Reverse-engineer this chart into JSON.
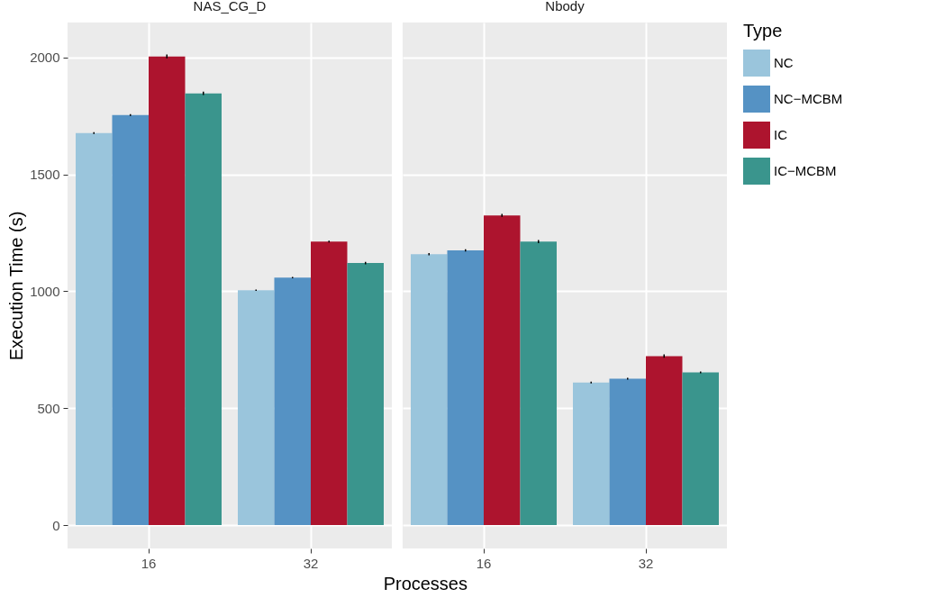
{
  "chart_data": [
    {
      "type": "bar",
      "title": "NAS_CG_D",
      "xlabel": "Processes",
      "ylabel": "Execution Time (s)",
      "categories": [
        "16",
        "32"
      ],
      "ylim": [
        -100,
        2150
      ],
      "yticks": [
        0,
        500,
        1000,
        1500,
        2000
      ],
      "grid": true,
      "legend": false,
      "series": [
        {
          "color": "#9ac5dc",
          "values": [
            1677,
            1005
          ],
          "errors": [
            4,
            3
          ]
        },
        {
          "color": "#5592c4",
          "values": [
            1754,
            1059
          ],
          "errors": [
            4,
            3
          ]
        },
        {
          "color": "#ad142e",
          "values": [
            2005,
            1213
          ],
          "errors": [
            8,
            4
          ]
        },
        {
          "color": "#3a958d",
          "values": [
            1847,
            1121
          ],
          "errors": [
            7,
            5
          ]
        }
      ]
    },
    {
      "type": "bar",
      "title": "Nbody",
      "categories": [
        "16",
        "32"
      ],
      "ylim": [
        -100,
        2150
      ],
      "yticks": [
        0,
        500,
        1000,
        1500,
        2000
      ],
      "grid": true,
      "legend": "right",
      "legend_title": "Type",
      "tick_labels": "x",
      "series": [
        {
          "name": "NC",
          "color": "#9ac5dc",
          "values": [
            1159,
            610
          ],
          "errors": [
            5,
            4
          ]
        },
        {
          "name": "NC−MCBM",
          "color": "#5592c4",
          "values": [
            1175,
            626
          ],
          "errors": [
            5,
            4
          ]
        },
        {
          "name": "IC",
          "color": "#ad142e",
          "values": [
            1325,
            723
          ],
          "errors": [
            6,
            7
          ]
        },
        {
          "name": "IC−MCBM",
          "color": "#3a958d",
          "values": [
            1213,
            653
          ],
          "errors": [
            7,
            4
          ]
        }
      ]
    }
  ]
}
